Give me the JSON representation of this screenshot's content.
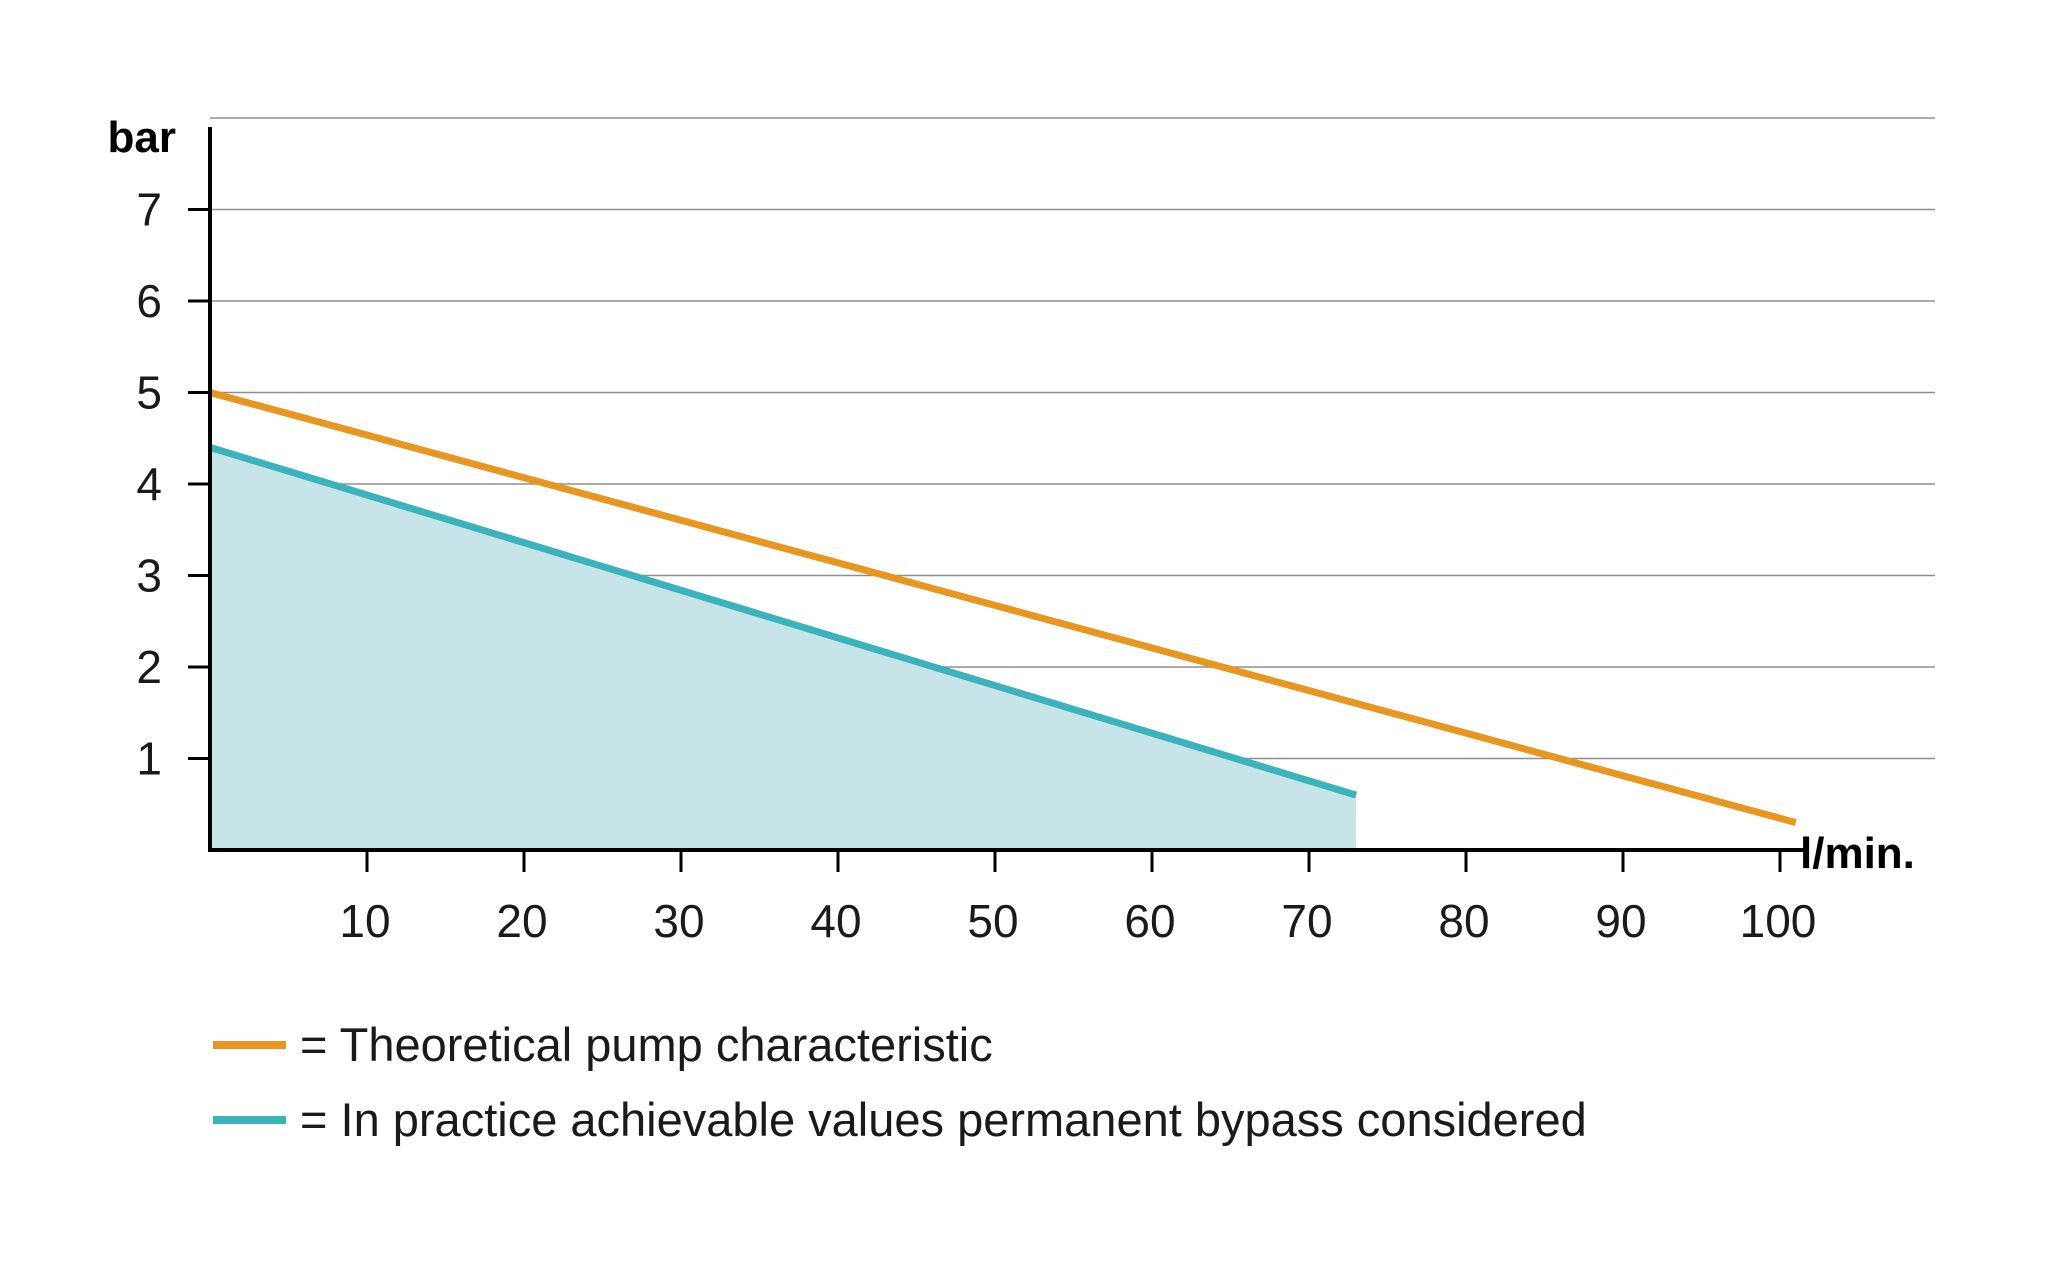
{
  "chart_data": {
    "type": "line",
    "title": "",
    "xlabel": "l/min.",
    "ylabel": "bar",
    "xlim": [
      0,
      110
    ],
    "ylim": [
      0,
      8
    ],
    "x_ticks": [
      10,
      20,
      30,
      40,
      50,
      60,
      70,
      80,
      90,
      100
    ],
    "y_ticks": [
      1,
      2,
      3,
      4,
      5,
      6,
      7
    ],
    "grid": "horizontal",
    "legend_position": "bottom-left",
    "series": [
      {
        "name": "Theoretical pump characteristic",
        "legend_label": "= Theoretical pump characteristic",
        "color": "#e8961f",
        "points": [
          [
            0,
            5.0
          ],
          [
            101,
            0.3
          ]
        ]
      },
      {
        "name": "In practice achievable values permanent bypass considered",
        "legend_label": "= In practice achievable values permanent bypass considered",
        "color": "#3bb3bc",
        "fill_color": "#c7e4e8",
        "filled": true,
        "points": [
          [
            0,
            4.4
          ],
          [
            73,
            0.6
          ]
        ]
      }
    ]
  }
}
